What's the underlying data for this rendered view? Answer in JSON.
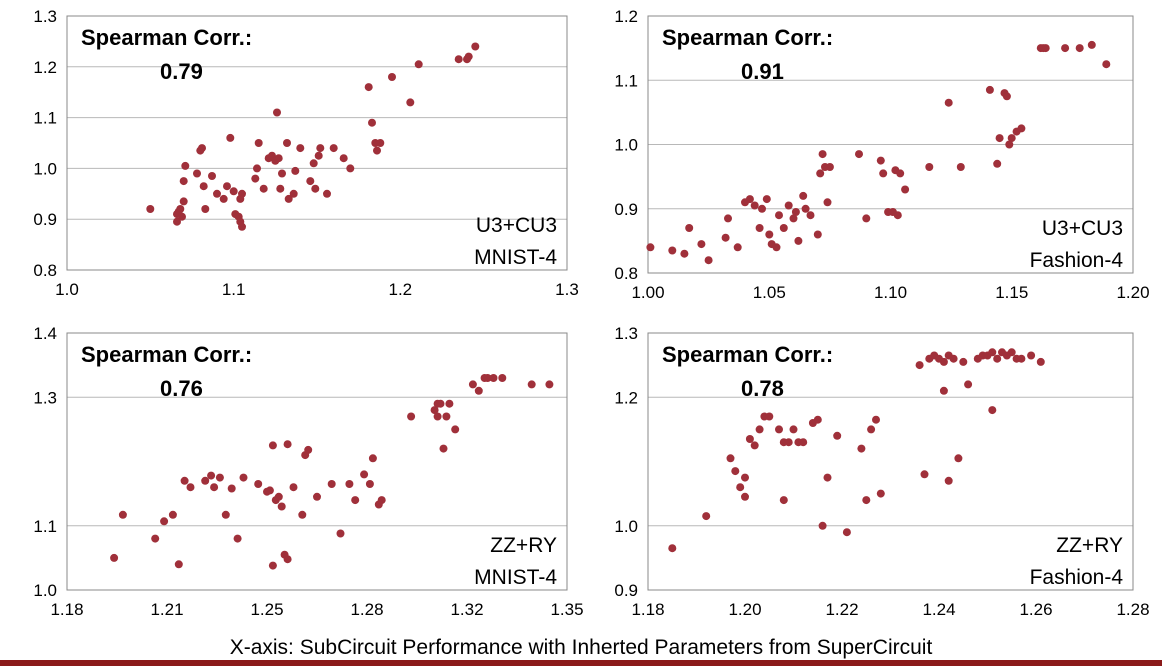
{
  "footer": {
    "x_axis_caption": "X-axis: SubCircuit Performance with Inherted Parameters from SuperCircuit",
    "rule_color": "#8b1a1a"
  },
  "colors": {
    "marker": "#a0303a",
    "grid": "#b8b8b8",
    "frame": "#888888"
  },
  "chart_data": [
    {
      "type": "scatter",
      "title": "Spearman Corr.:",
      "subtitle": "0.79",
      "annotation": [
        "U3+CU3",
        "MNIST-4"
      ],
      "xlim": [
        1.0,
        1.3
      ],
      "ylim": [
        0.8,
        1.3
      ],
      "x_ticks": [
        "1.0",
        "1.1",
        "1.2",
        "1.3"
      ],
      "y_ticks": [
        "0.8",
        "0.9",
        "1.0",
        "1.1",
        "1.2",
        "1.3"
      ],
      "grid": "horizontal",
      "points": [
        [
          1.05,
          0.92
        ],
        [
          1.066,
          0.895
        ],
        [
          1.066,
          0.91
        ],
        [
          1.067,
          0.915
        ],
        [
          1.068,
          0.92
        ],
        [
          1.069,
          0.905
        ],
        [
          1.07,
          0.935
        ],
        [
          1.07,
          0.975
        ],
        [
          1.071,
          1.005
        ],
        [
          1.078,
          0.99
        ],
        [
          1.08,
          1.035
        ],
        [
          1.081,
          1.04
        ],
        [
          1.082,
          0.965
        ],
        [
          1.083,
          0.92
        ],
        [
          1.087,
          0.985
        ],
        [
          1.09,
          0.95
        ],
        [
          1.094,
          0.94
        ],
        [
          1.096,
          0.965
        ],
        [
          1.098,
          1.06
        ],
        [
          1.1,
          0.955
        ],
        [
          1.101,
          0.91
        ],
        [
          1.103,
          0.905
        ],
        [
          1.104,
          0.895
        ],
        [
          1.105,
          0.885
        ],
        [
          1.104,
          0.94
        ],
        [
          1.105,
          0.95
        ],
        [
          1.113,
          0.98
        ],
        [
          1.114,
          1.0
        ],
        [
          1.115,
          1.05
        ],
        [
          1.118,
          0.96
        ],
        [
          1.121,
          1.02
        ],
        [
          1.123,
          1.025
        ],
        [
          1.125,
          1.015
        ],
        [
          1.126,
          1.11
        ],
        [
          1.127,
          1.02
        ],
        [
          1.128,
          0.96
        ],
        [
          1.129,
          0.99
        ],
        [
          1.132,
          1.05
        ],
        [
          1.133,
          0.94
        ],
        [
          1.136,
          0.95
        ],
        [
          1.137,
          0.995
        ],
        [
          1.14,
          1.04
        ],
        [
          1.146,
          0.975
        ],
        [
          1.148,
          1.01
        ],
        [
          1.149,
          0.96
        ],
        [
          1.151,
          1.025
        ],
        [
          1.152,
          1.04
        ],
        [
          1.156,
          0.95
        ],
        [
          1.16,
          1.04
        ],
        [
          1.166,
          1.02
        ],
        [
          1.17,
          1.0
        ],
        [
          1.181,
          1.16
        ],
        [
          1.183,
          1.09
        ],
        [
          1.185,
          1.05
        ],
        [
          1.186,
          1.035
        ],
        [
          1.188,
          1.05
        ],
        [
          1.195,
          1.18
        ],
        [
          1.206,
          1.13
        ],
        [
          1.211,
          1.205
        ],
        [
          1.235,
          1.215
        ],
        [
          1.24,
          1.215
        ],
        [
          1.241,
          1.22
        ],
        [
          1.245,
          1.24
        ]
      ]
    },
    {
      "type": "scatter",
      "title": "Spearman Corr.:",
      "subtitle": "0.91",
      "annotation": [
        "U3+CU3",
        "Fashion-4"
      ],
      "xlim": [
        1.0,
        1.2
      ],
      "ylim": [
        0.8,
        1.2
      ],
      "x_ticks": [
        "1.00",
        "1.05",
        "1.10",
        "1.15",
        "1.20"
      ],
      "y_ticks": [
        "0.8",
        "0.9",
        "1.0",
        "1.1",
        "1.2"
      ],
      "grid": "horizontal",
      "points": [
        [
          1.001,
          0.84
        ],
        [
          1.01,
          0.835
        ],
        [
          1.015,
          0.83
        ],
        [
          1.017,
          0.87
        ],
        [
          1.022,
          0.845
        ],
        [
          1.025,
          0.82
        ],
        [
          1.032,
          0.855
        ],
        [
          1.033,
          0.885
        ],
        [
          1.037,
          0.84
        ],
        [
          1.04,
          0.91
        ],
        [
          1.042,
          0.915
        ],
        [
          1.044,
          0.905
        ],
        [
          1.046,
          0.87
        ],
        [
          1.047,
          0.9
        ],
        [
          1.049,
          0.915
        ],
        [
          1.05,
          0.86
        ],
        [
          1.051,
          0.845
        ],
        [
          1.053,
          0.84
        ],
        [
          1.054,
          0.89
        ],
        [
          1.056,
          0.87
        ],
        [
          1.058,
          0.905
        ],
        [
          1.06,
          0.885
        ],
        [
          1.061,
          0.895
        ],
        [
          1.062,
          0.85
        ],
        [
          1.064,
          0.92
        ],
        [
          1.065,
          0.9
        ],
        [
          1.067,
          0.89
        ],
        [
          1.07,
          0.86
        ],
        [
          1.071,
          0.955
        ],
        [
          1.072,
          0.985
        ],
        [
          1.073,
          0.965
        ],
        [
          1.074,
          0.91
        ],
        [
          1.075,
          0.965
        ],
        [
          1.087,
          0.985
        ],
        [
          1.09,
          0.885
        ],
        [
          1.096,
          0.975
        ],
        [
          1.097,
          0.955
        ],
        [
          1.099,
          0.895
        ],
        [
          1.101,
          0.895
        ],
        [
          1.102,
          0.96
        ],
        [
          1.103,
          0.89
        ],
        [
          1.104,
          0.955
        ],
        [
          1.106,
          0.93
        ],
        [
          1.116,
          0.965
        ],
        [
          1.124,
          1.065
        ],
        [
          1.129,
          0.965
        ],
        [
          1.141,
          1.085
        ],
        [
          1.144,
          0.97
        ],
        [
          1.145,
          1.01
        ],
        [
          1.147,
          1.08
        ],
        [
          1.148,
          1.075
        ],
        [
          1.149,
          1.0
        ],
        [
          1.15,
          1.01
        ],
        [
          1.152,
          1.02
        ],
        [
          1.154,
          1.025
        ],
        [
          1.162,
          1.15
        ],
        [
          1.163,
          1.15
        ],
        [
          1.164,
          1.15
        ],
        [
          1.172,
          1.15
        ],
        [
          1.178,
          1.15
        ],
        [
          1.183,
          1.155
        ],
        [
          1.189,
          1.125
        ]
      ]
    },
    {
      "type": "scatter",
      "title": "Spearman Corr.:",
      "subtitle": "0.76",
      "annotation": [
        "ZZ+RY",
        "MNIST-4"
      ],
      "xlim": [
        1.18,
        1.35
      ],
      "ylim": [
        1.0,
        1.4
      ],
      "x_ticks": [
        "1.18",
        "1.21",
        "1.25",
        "1.28",
        "1.32",
        "1.35"
      ],
      "y_ticks": [
        "1.0",
        "1.1",
        "1.3",
        "1.4"
      ],
      "grid": "horizontal",
      "points": [
        [
          1.196,
          1.05
        ],
        [
          1.199,
          1.117
        ],
        [
          1.21,
          1.08
        ],
        [
          1.213,
          1.107
        ],
        [
          1.216,
          1.117
        ],
        [
          1.218,
          1.04
        ],
        [
          1.22,
          1.17
        ],
        [
          1.222,
          1.16
        ],
        [
          1.227,
          1.17
        ],
        [
          1.229,
          1.178
        ],
        [
          1.23,
          1.16
        ],
        [
          1.232,
          1.175
        ],
        [
          1.234,
          1.117
        ],
        [
          1.236,
          1.158
        ],
        [
          1.238,
          1.08
        ],
        [
          1.24,
          1.175
        ],
        [
          1.245,
          1.165
        ],
        [
          1.248,
          1.153
        ],
        [
          1.249,
          1.155
        ],
        [
          1.25,
          1.225
        ],
        [
          1.251,
          1.14
        ],
        [
          1.252,
          1.145
        ],
        [
          1.253,
          1.13
        ],
        [
          1.25,
          1.038
        ],
        [
          1.254,
          1.055
        ],
        [
          1.255,
          1.048
        ],
        [
          1.255,
          1.227
        ],
        [
          1.257,
          1.16
        ],
        [
          1.26,
          1.117
        ],
        [
          1.261,
          1.21
        ],
        [
          1.262,
          1.218
        ],
        [
          1.265,
          1.145
        ],
        [
          1.27,
          1.165
        ],
        [
          1.273,
          1.088
        ],
        [
          1.276,
          1.165
        ],
        [
          1.278,
          1.14
        ],
        [
          1.281,
          1.18
        ],
        [
          1.283,
          1.165
        ],
        [
          1.284,
          1.205
        ],
        [
          1.286,
          1.133
        ],
        [
          1.287,
          1.14
        ],
        [
          1.297,
          1.27
        ],
        [
          1.305,
          1.28
        ],
        [
          1.306,
          1.29
        ],
        [
          1.306,
          1.27
        ],
        [
          1.307,
          1.29
        ],
        [
          1.308,
          1.22
        ],
        [
          1.309,
          1.27
        ],
        [
          1.31,
          1.29
        ],
        [
          1.312,
          1.25
        ],
        [
          1.318,
          1.32
        ],
        [
          1.32,
          1.31
        ],
        [
          1.322,
          1.33
        ],
        [
          1.323,
          1.33
        ],
        [
          1.325,
          1.33
        ],
        [
          1.328,
          1.33
        ],
        [
          1.338,
          1.32
        ],
        [
          1.344,
          1.32
        ]
      ]
    },
    {
      "type": "scatter",
      "title": "Spearman Corr.:",
      "subtitle": "0.78",
      "annotation": [
        "ZZ+RY",
        "Fashion-4"
      ],
      "xlim": [
        1.18,
        1.28
      ],
      "ylim": [
        0.9,
        1.3
      ],
      "x_ticks": [
        "1.18",
        "1.20",
        "1.22",
        "1.24",
        "1.26",
        "1.28"
      ],
      "y_ticks": [
        "0.9",
        "1.0",
        "1.2",
        "1.3"
      ],
      "grid": "horizontal",
      "points": [
        [
          1.185,
          0.965
        ],
        [
          1.192,
          1.015
        ],
        [
          1.197,
          1.105
        ],
        [
          1.198,
          1.085
        ],
        [
          1.199,
          1.06
        ],
        [
          1.2,
          1.075
        ],
        [
          1.2,
          1.045
        ],
        [
          1.201,
          1.135
        ],
        [
          1.202,
          1.125
        ],
        [
          1.203,
          1.15
        ],
        [
          1.204,
          1.17
        ],
        [
          1.205,
          1.17
        ],
        [
          1.207,
          1.15
        ],
        [
          1.208,
          1.13
        ],
        [
          1.208,
          1.04
        ],
        [
          1.209,
          1.13
        ],
        [
          1.21,
          1.15
        ],
        [
          1.211,
          1.13
        ],
        [
          1.212,
          1.13
        ],
        [
          1.214,
          1.16
        ],
        [
          1.215,
          1.165
        ],
        [
          1.216,
          1.0
        ],
        [
          1.217,
          1.075
        ],
        [
          1.219,
          1.14
        ],
        [
          1.221,
          0.99
        ],
        [
          1.224,
          1.12
        ],
        [
          1.225,
          1.04
        ],
        [
          1.226,
          1.15
        ],
        [
          1.227,
          1.165
        ],
        [
          1.228,
          1.05
        ],
        [
          1.236,
          1.25
        ],
        [
          1.237,
          1.08
        ],
        [
          1.238,
          1.26
        ],
        [
          1.239,
          1.265
        ],
        [
          1.24,
          1.26
        ],
        [
          1.241,
          1.255
        ],
        [
          1.241,
          1.21
        ],
        [
          1.242,
          1.07
        ],
        [
          1.242,
          1.265
        ],
        [
          1.243,
          1.26
        ],
        [
          1.244,
          1.105
        ],
        [
          1.245,
          1.255
        ],
        [
          1.246,
          1.22
        ],
        [
          1.248,
          1.26
        ],
        [
          1.249,
          1.265
        ],
        [
          1.25,
          1.265
        ],
        [
          1.251,
          1.27
        ],
        [
          1.252,
          1.26
        ],
        [
          1.253,
          1.27
        ],
        [
          1.254,
          1.265
        ],
        [
          1.255,
          1.27
        ],
        [
          1.256,
          1.26
        ],
        [
          1.257,
          1.26
        ],
        [
          1.259,
          1.265
        ],
        [
          1.261,
          1.255
        ],
        [
          1.251,
          1.18
        ]
      ]
    }
  ]
}
